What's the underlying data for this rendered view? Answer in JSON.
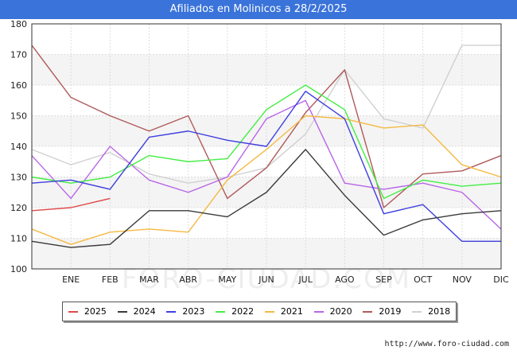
{
  "header": {
    "title": "Afiliados en Molinicos a 28/2/2025"
  },
  "source_text": "http://www.foro-ciudad.com",
  "watermark": "FORO-CIUDAD.COM",
  "chart_data": {
    "type": "line",
    "title": "Afiliados en Molinicos a 28/2/2025",
    "categories": [
      "",
      "ENE",
      "FEB",
      "MAR",
      "ABR",
      "MAY",
      "JUN",
      "JUL",
      "AGO",
      "SEP",
      "OCT",
      "NOV",
      "DIC"
    ],
    "yticks": [
      100,
      110,
      120,
      130,
      140,
      150,
      160,
      170,
      180
    ],
    "ylim": [
      100,
      180
    ],
    "grid": true,
    "legend_position": "bottom",
    "series": [
      {
        "name": "2025",
        "color": "#e04848",
        "values": [
          119,
          120,
          123,
          null,
          null,
          null,
          null,
          null,
          null,
          null,
          null,
          null,
          null
        ]
      },
      {
        "name": "2024",
        "color": "#3a3a3a",
        "values": [
          109,
          107,
          108,
          119,
          119,
          117,
          125,
          139,
          124,
          111,
          116,
          118,
          119
        ]
      },
      {
        "name": "2023",
        "color": "#3e3ee0",
        "values": [
          128,
          129,
          126,
          143,
          145,
          142,
          140,
          158,
          149,
          118,
          121,
          109,
          109
        ]
      },
      {
        "name": "2022",
        "color": "#44ee44",
        "values": [
          130,
          128,
          130,
          137,
          135,
          136,
          152,
          160,
          152,
          123,
          129,
          127,
          128
        ]
      },
      {
        "name": "2021",
        "color": "#f5b942",
        "values": [
          113,
          108,
          112,
          113,
          112,
          129,
          139,
          150,
          149,
          146,
          147,
          134,
          130
        ]
      },
      {
        "name": "2020",
        "color": "#b865e8",
        "values": [
          137,
          123,
          140,
          129,
          125,
          130,
          149,
          155,
          128,
          126,
          128,
          125,
          113
        ]
      },
      {
        "name": "2019",
        "color": "#b05a5a",
        "values": [
          173,
          156,
          150,
          145,
          150,
          123,
          133,
          151,
          165,
          120,
          131,
          132,
          137
        ]
      },
      {
        "name": "2018",
        "color": "#d0d0d0",
        "values": [
          139,
          134,
          138,
          131,
          128,
          130,
          133,
          144,
          165,
          149,
          146,
          173,
          173
        ]
      }
    ]
  }
}
